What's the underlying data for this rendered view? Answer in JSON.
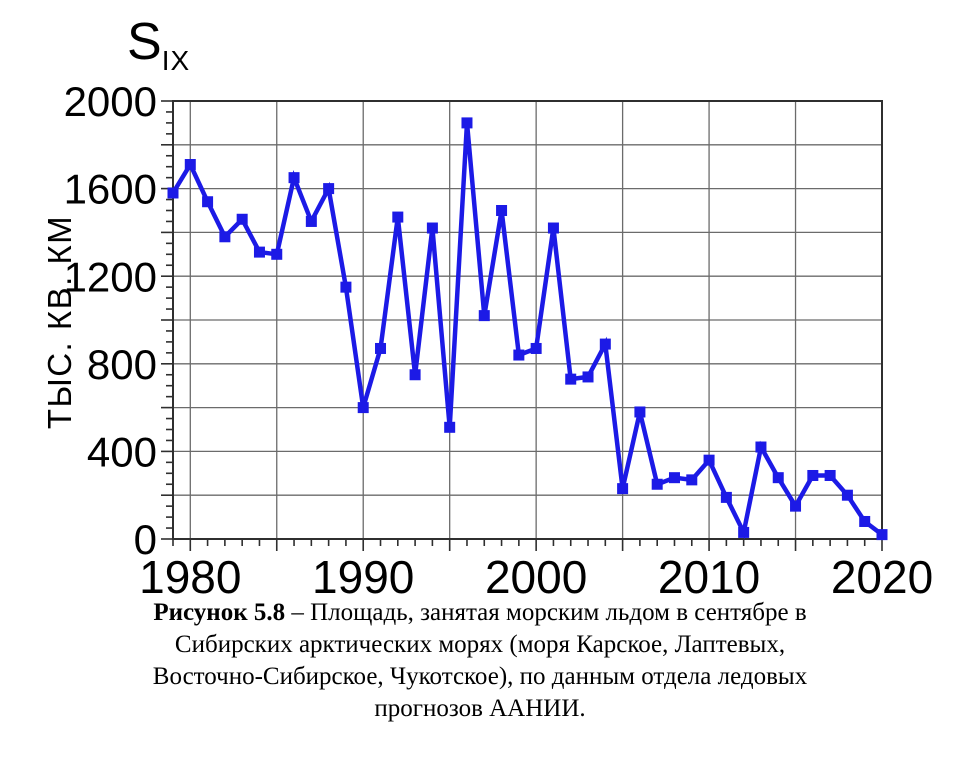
{
  "title": {
    "main": "S",
    "subscript": "IX"
  },
  "y_axis_label": "ТЫС. КВ. КМ",
  "colors": {
    "line": "#1c1ae6",
    "marker": "#1c1ae6",
    "grid": "#6b6b6b",
    "axis": "#2f2f2f",
    "text": "#000000",
    "background": "#ffffff"
  },
  "chart_data": {
    "type": "line",
    "title": "S IX",
    "ylabel": "ТЫС. КВ. КМ",
    "xlabel": "",
    "legend": "none",
    "grid": true,
    "marker": "square",
    "xlim": [
      1979,
      2020
    ],
    "ylim": [
      0,
      2000
    ],
    "x_grid_step_years": 5,
    "y_grid_step": 200,
    "x_minor_tick_step": 1,
    "y_minor_tick_step": 50,
    "x_tick_values": [
      1980,
      1990,
      2000,
      2010,
      2020
    ],
    "x_tick_labels": [
      "1980",
      "1990",
      "2000",
      "2010",
      "2020"
    ],
    "y_tick_values": [
      0,
      400,
      800,
      1200,
      1600,
      2000
    ],
    "y_tick_labels": [
      "0",
      "400",
      "800",
      "1200",
      "1600",
      "2000"
    ],
    "x": [
      1979,
      1980,
      1981,
      1982,
      1983,
      1984,
      1985,
      1986,
      1987,
      1988,
      1989,
      1990,
      1991,
      1992,
      1993,
      1994,
      1995,
      1996,
      1997,
      1998,
      1999,
      2000,
      2001,
      2002,
      2003,
      2004,
      2005,
      2006,
      2007,
      2008,
      2009,
      2010,
      2011,
      2012,
      2013,
      2014,
      2015,
      2016,
      2017,
      2018,
      2019,
      2020
    ],
    "values": [
      1580,
      1710,
      1540,
      1380,
      1460,
      1310,
      1300,
      1650,
      1450,
      1600,
      1150,
      600,
      870,
      1470,
      750,
      1420,
      510,
      1900,
      1020,
      1500,
      840,
      870,
      1420,
      730,
      740,
      890,
      230,
      580,
      250,
      280,
      270,
      360,
      190,
      30,
      420,
      280,
      150,
      290,
      290,
      200,
      80,
      20
    ]
  },
  "caption": {
    "bold_label": "Рисунок 5.8",
    "line1_rest": " – Площадь, занятая морским льдом в сентябре в",
    "line2": "Сибирских арктических морях (моря Карское, Лаптевых,",
    "line3": "Восточно-Сибирское, Чукотское), по данным отдела ледовых",
    "line4": "прогнозов ААНИИ."
  }
}
